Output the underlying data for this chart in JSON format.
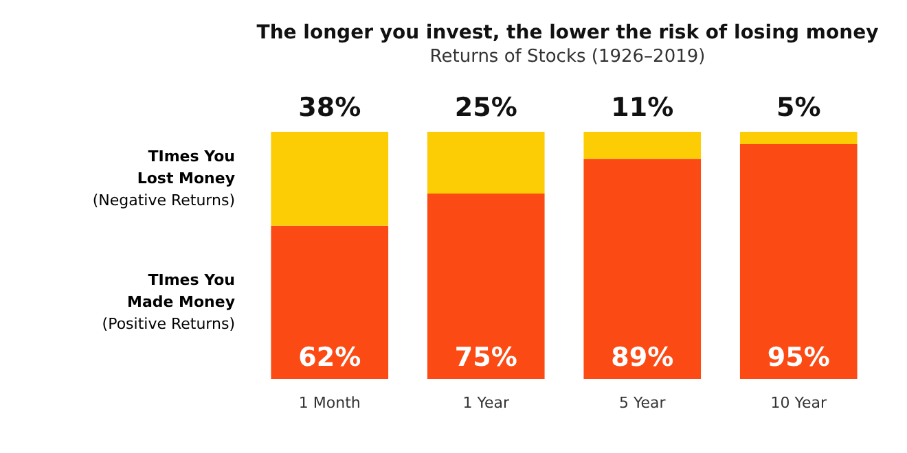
{
  "chart_data": {
    "type": "bar",
    "title": "The longer you invest, the lower the risk of losing money",
    "subtitle": "Returns of Stocks (1926–2019)",
    "categories": [
      "1 Month",
      "1 Year",
      "5 Year",
      "10 Year"
    ],
    "stacked": true,
    "legend": false,
    "grid": false,
    "tick_labels": "x",
    "series": [
      {
        "name": "TImes You\nMade Money\n(Positive Returns)",
        "color": "#fc4a14",
        "values": [
          62,
          75,
          89,
          95
        ],
        "value_labels": [
          "62%",
          "75%",
          "89%",
          "95%"
        ]
      },
      {
        "name": "TImes You\nLost Money\n(Negative Returns)",
        "color": "#fccc04",
        "values": [
          38,
          25,
          11,
          5
        ],
        "value_labels": [
          "38%",
          "25%",
          "11%",
          "5%"
        ]
      }
    ]
  }
}
